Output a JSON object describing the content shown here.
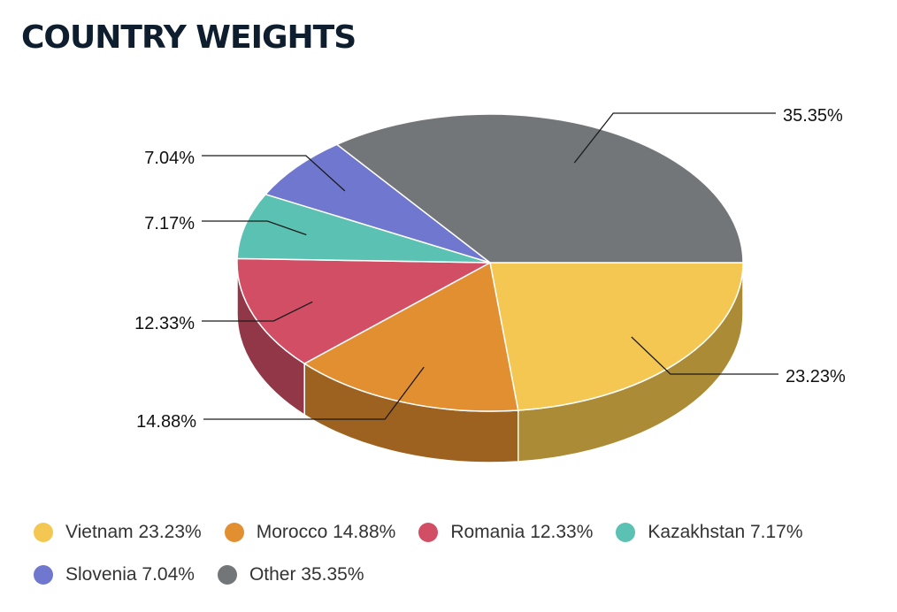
{
  "chart_data": {
    "type": "pie",
    "title": "COUNTRY WEIGHTS",
    "slices": [
      {
        "label": "Vietnam",
        "value": 23.23,
        "display": "23.23%",
        "legend": "Vietnam 23.23%",
        "color": "#f4c752",
        "side_color": "#ac8b37"
      },
      {
        "label": "Morocco",
        "value": 14.88,
        "display": "14.88%",
        "legend": "Morocco 14.88%",
        "color": "#e28f32",
        "side_color": "#9d6220"
      },
      {
        "label": "Romania",
        "value": 12.33,
        "display": "12.33%",
        "legend": "Romania 12.33%",
        "color": "#d24e65",
        "side_color": "#913747"
      },
      {
        "label": "Kazakhstan",
        "value": 7.17,
        "display": "7.17%",
        "legend": "Kazakhstan 7.17%",
        "color": "#5bc2b3",
        "side_color": "#3f877c"
      },
      {
        "label": "Slovenia",
        "value": 7.04,
        "display": "7.04%",
        "legend": "Slovenia 7.04%",
        "color": "#6f78ce",
        "side_color": "#4d5490"
      },
      {
        "label": "Other",
        "value": 35.35,
        "display": "35.35%",
        "legend": "Other 35.35%",
        "color": "#737679",
        "side_color": "#505254"
      }
    ],
    "legend_position": "bottom",
    "chart_style": "3d-pie"
  }
}
